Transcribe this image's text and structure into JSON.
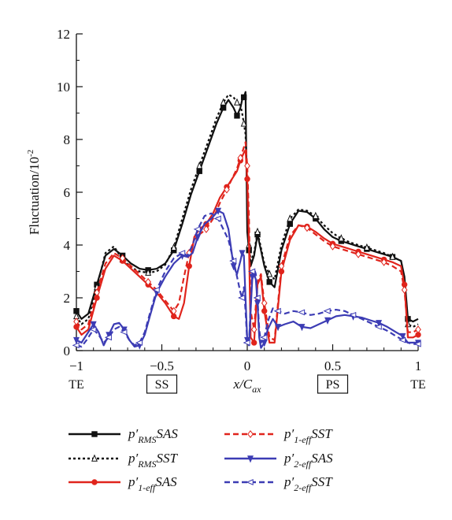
{
  "chart_data": {
    "type": "line",
    "ylabel": "Fluctuation/10",
    "ylabel_exp": "-2",
    "xlabel": "x/C",
    "xlabel_sub": "ax",
    "xlim": [
      -1,
      1
    ],
    "ylim": [
      0,
      12
    ],
    "x_ticks": [
      "−1",
      "−0.5",
      "0",
      "0.5",
      "1"
    ],
    "y_ticks": [
      "0",
      "2",
      "4",
      "6",
      "8",
      "10",
      "12"
    ],
    "x_annotations": [
      {
        "x": -1,
        "text": "TE",
        "boxed": false
      },
      {
        "x": -0.5,
        "text": "SS",
        "boxed": true
      },
      {
        "x": 0.5,
        "text": "PS",
        "boxed": true
      },
      {
        "x": 1,
        "text": "TE",
        "boxed": false
      }
    ],
    "grid": false,
    "legend_position": "below-plot",
    "series": [
      {
        "name": "p′RMS SAS",
        "base": "p′",
        "sub": "RMS",
        "suffix": "SAS",
        "color": "#111111",
        "dash": "solid",
        "marker": "square",
        "x": [
          -1.0,
          -0.97,
          -0.93,
          -0.88,
          -0.83,
          -0.78,
          -0.73,
          -0.68,
          -0.63,
          -0.58,
          -0.53,
          -0.48,
          -0.43,
          -0.38,
          -0.33,
          -0.28,
          -0.23,
          -0.18,
          -0.14,
          -0.11,
          -0.08,
          -0.06,
          -0.04,
          -0.03,
          -0.02,
          -0.01,
          0.0,
          0.01,
          0.02,
          0.04,
          0.06,
          0.08,
          0.1,
          0.13,
          0.16,
          0.2,
          0.25,
          0.3,
          0.35,
          0.4,
          0.45,
          0.5,
          0.55,
          0.6,
          0.65,
          0.7,
          0.75,
          0.8,
          0.85,
          0.9,
          0.92,
          0.94,
          0.97,
          1.0
        ],
        "y": [
          1.5,
          1.2,
          1.4,
          2.5,
          3.6,
          3.85,
          3.6,
          3.3,
          3.1,
          3.05,
          3.1,
          3.3,
          3.8,
          4.8,
          5.9,
          6.8,
          7.7,
          8.6,
          9.2,
          9.5,
          9.2,
          8.9,
          9.2,
          9.5,
          9.6,
          9.8,
          4.5,
          3.8,
          3.2,
          3.6,
          4.4,
          3.8,
          3.2,
          2.6,
          2.4,
          3.8,
          4.8,
          5.3,
          5.25,
          5.0,
          4.6,
          4.3,
          4.15,
          4.05,
          3.95,
          3.85,
          3.75,
          3.65,
          3.55,
          3.4,
          2.8,
          1.2,
          1.1,
          1.2
        ]
      },
      {
        "name": "p′RMS SST",
        "base": "p′",
        "sub": "RMS",
        "suffix": "SST",
        "color": "#111111",
        "dash": "dotted",
        "marker": "triangle",
        "x": [
          -1.0,
          -0.97,
          -0.93,
          -0.88,
          -0.83,
          -0.78,
          -0.73,
          -0.68,
          -0.63,
          -0.58,
          -0.53,
          -0.48,
          -0.43,
          -0.38,
          -0.33,
          -0.28,
          -0.23,
          -0.18,
          -0.14,
          -0.11,
          -0.08,
          -0.06,
          -0.04,
          -0.03,
          -0.02,
          -0.01,
          0.0,
          0.01,
          0.02,
          0.04,
          0.06,
          0.08,
          0.1,
          0.13,
          0.16,
          0.2,
          0.25,
          0.3,
          0.35,
          0.4,
          0.45,
          0.5,
          0.55,
          0.6,
          0.65,
          0.7,
          0.75,
          0.8,
          0.85,
          0.9,
          0.92,
          0.94,
          0.97,
          1.0
        ],
        "y": [
          1.3,
          1.0,
          1.2,
          2.4,
          3.7,
          3.95,
          3.45,
          3.15,
          3.0,
          2.95,
          3.0,
          3.25,
          3.9,
          5.0,
          6.1,
          7.0,
          7.9,
          8.8,
          9.4,
          9.7,
          9.6,
          9.4,
          9.3,
          9.0,
          8.6,
          8.2,
          6.0,
          4.0,
          3.4,
          3.7,
          4.5,
          3.9,
          3.3,
          2.9,
          2.7,
          4.0,
          5.0,
          5.35,
          5.3,
          5.1,
          4.75,
          4.45,
          4.25,
          4.1,
          4.0,
          3.9,
          3.8,
          3.7,
          3.55,
          3.4,
          2.7,
          1.0,
          0.9,
          1.0
        ]
      },
      {
        "name": "p′1-eff SAS",
        "base": "p′",
        "sub": "1-eff",
        "suffix": "SAS",
        "color": "#e0241c",
        "dash": "solid",
        "marker": "circle",
        "x": [
          -1.0,
          -0.97,
          -0.93,
          -0.88,
          -0.83,
          -0.78,
          -0.73,
          -0.68,
          -0.63,
          -0.58,
          -0.53,
          -0.48,
          -0.43,
          -0.4,
          -0.37,
          -0.34,
          -0.31,
          -0.28,
          -0.24,
          -0.2,
          -0.16,
          -0.12,
          -0.09,
          -0.06,
          -0.04,
          -0.02,
          -0.01,
          0.0,
          0.01,
          0.02,
          0.04,
          0.06,
          0.08,
          0.1,
          0.13,
          0.16,
          0.2,
          0.25,
          0.3,
          0.35,
          0.4,
          0.45,
          0.5,
          0.55,
          0.6,
          0.65,
          0.7,
          0.75,
          0.8,
          0.85,
          0.9,
          0.92,
          0.94,
          0.97,
          1.0
        ],
        "y": [
          0.9,
          0.6,
          0.8,
          2.0,
          3.1,
          3.6,
          3.4,
          3.1,
          2.8,
          2.5,
          2.2,
          1.8,
          1.3,
          1.2,
          1.8,
          3.2,
          4.3,
          4.6,
          4.8,
          5.2,
          5.8,
          6.2,
          6.5,
          6.8,
          7.2,
          7.5,
          7.6,
          6.5,
          4.0,
          0.5,
          0.3,
          2.5,
          2.8,
          1.5,
          0.3,
          0.3,
          3.0,
          4.2,
          4.75,
          4.7,
          4.5,
          4.25,
          4.05,
          3.95,
          3.85,
          3.75,
          3.65,
          3.55,
          3.45,
          3.35,
          3.2,
          2.5,
          0.5,
          0.5,
          0.6
        ]
      },
      {
        "name": "p′1-eff SST",
        "base": "p′",
        "sub": "1-eff",
        "suffix": "SST",
        "color": "#e0241c",
        "dash": "dashed",
        "marker": "diamond",
        "x": [
          -1.0,
          -0.97,
          -0.93,
          -0.88,
          -0.83,
          -0.78,
          -0.73,
          -0.68,
          -0.63,
          -0.58,
          -0.53,
          -0.48,
          -0.43,
          -0.4,
          -0.37,
          -0.34,
          -0.31,
          -0.28,
          -0.24,
          -0.2,
          -0.16,
          -0.12,
          -0.09,
          -0.06,
          -0.04,
          -0.02,
          -0.01,
          0.0,
          0.01,
          0.02,
          0.04,
          0.06,
          0.08,
          0.1,
          0.13,
          0.16,
          0.2,
          0.25,
          0.3,
          0.35,
          0.4,
          0.45,
          0.5,
          0.55,
          0.6,
          0.65,
          0.7,
          0.75,
          0.8,
          0.85,
          0.9,
          0.92,
          0.94,
          0.97,
          1.0
        ],
        "y": [
          1.1,
          0.8,
          1.0,
          2.2,
          3.3,
          3.7,
          3.5,
          3.2,
          2.9,
          2.6,
          2.3,
          1.9,
          1.5,
          1.8,
          2.8,
          3.7,
          4.2,
          4.4,
          4.6,
          5.0,
          5.6,
          6.1,
          6.5,
          6.9,
          7.3,
          7.7,
          7.9,
          7.0,
          5.0,
          1.5,
          0.8,
          2.6,
          2.9,
          1.8,
          0.5,
          0.4,
          3.2,
          4.35,
          4.75,
          4.65,
          4.4,
          4.15,
          3.95,
          3.85,
          3.75,
          3.65,
          3.55,
          3.45,
          3.35,
          3.2,
          3.0,
          2.3,
          0.7,
          0.7,
          0.8
        ]
      },
      {
        "name": "p′2-eff SAS",
        "base": "p′",
        "sub": "2-eff",
        "suffix": "SAS",
        "color": "#3c3cb4",
        "dash": "solid",
        "marker": "inverted-triangle",
        "x": [
          -1.0,
          -0.97,
          -0.94,
          -0.9,
          -0.87,
          -0.84,
          -0.81,
          -0.78,
          -0.75,
          -0.72,
          -0.69,
          -0.66,
          -0.63,
          -0.6,
          -0.57,
          -0.53,
          -0.48,
          -0.43,
          -0.38,
          -0.35,
          -0.32,
          -0.29,
          -0.25,
          -0.21,
          -0.17,
          -0.14,
          -0.11,
          -0.08,
          -0.06,
          -0.04,
          -0.03,
          -0.02,
          -0.01,
          0.0,
          0.01,
          0.02,
          0.03,
          0.04,
          0.05,
          0.06,
          0.07,
          0.08,
          0.1,
          0.12,
          0.15,
          0.18,
          0.22,
          0.27,
          0.32,
          0.37,
          0.42,
          0.47,
          0.52,
          0.57,
          0.62,
          0.67,
          0.72,
          0.77,
          0.82,
          0.87,
          0.91,
          0.94,
          0.97,
          1.0
        ],
        "y": [
          0.4,
          0.3,
          0.6,
          1.0,
          0.7,
          0.2,
          0.6,
          1.0,
          1.05,
          0.8,
          0.4,
          0.15,
          0.2,
          0.6,
          1.3,
          2.2,
          2.8,
          3.3,
          3.6,
          3.55,
          3.7,
          4.3,
          4.8,
          5.0,
          5.3,
          5.2,
          4.6,
          3.2,
          2.9,
          3.4,
          3.7,
          3.6,
          2.0,
          0.4,
          0.2,
          1.5,
          2.8,
          2.9,
          2.7,
          1.8,
          0.5,
          0.1,
          0.3,
          0.8,
          1.2,
          0.9,
          1.0,
          1.1,
          0.9,
          0.85,
          1.0,
          1.15,
          1.3,
          1.35,
          1.3,
          1.25,
          1.15,
          1.05,
          0.9,
          0.7,
          0.55,
          0.3,
          0.3,
          0.3
        ]
      },
      {
        "name": "p′2-eff SST",
        "base": "p′",
        "sub": "2-eff",
        "suffix": "SST",
        "color": "#3c3cb4",
        "dash": "dashed",
        "marker": "left-triangle",
        "x": [
          -1.0,
          -0.97,
          -0.94,
          -0.9,
          -0.87,
          -0.84,
          -0.81,
          -0.78,
          -0.75,
          -0.72,
          -0.69,
          -0.66,
          -0.63,
          -0.6,
          -0.57,
          -0.53,
          -0.48,
          -0.43,
          -0.38,
          -0.35,
          -0.32,
          -0.29,
          -0.25,
          -0.21,
          -0.17,
          -0.14,
          -0.11,
          -0.08,
          -0.06,
          -0.04,
          -0.03,
          -0.02,
          -0.01,
          0.0,
          0.01,
          0.02,
          0.03,
          0.04,
          0.05,
          0.06,
          0.07,
          0.08,
          0.1,
          0.12,
          0.15,
          0.18,
          0.22,
          0.27,
          0.32,
          0.37,
          0.42,
          0.47,
          0.52,
          0.57,
          0.62,
          0.67,
          0.72,
          0.77,
          0.82,
          0.87,
          0.91,
          0.94,
          0.97,
          1.0
        ],
        "y": [
          0.2,
          0.15,
          0.4,
          0.8,
          0.6,
          0.3,
          0.5,
          0.8,
          0.9,
          0.7,
          0.4,
          0.2,
          0.3,
          0.7,
          1.4,
          2.3,
          3.0,
          3.5,
          3.7,
          3.6,
          4.0,
          4.6,
          5.1,
          5.2,
          5.0,
          4.6,
          4.2,
          3.4,
          2.8,
          2.2,
          2.0,
          2.4,
          1.5,
          0.3,
          0.2,
          1.8,
          3.0,
          3.1,
          2.9,
          2.0,
          0.8,
          0.3,
          0.5,
          1.1,
          1.6,
          1.5,
          1.4,
          1.5,
          1.45,
          1.35,
          1.4,
          1.5,
          1.55,
          1.5,
          1.35,
          1.2,
          1.05,
          0.9,
          0.75,
          0.55,
          0.4,
          0.3,
          0.25,
          0.25
        ]
      }
    ]
  }
}
